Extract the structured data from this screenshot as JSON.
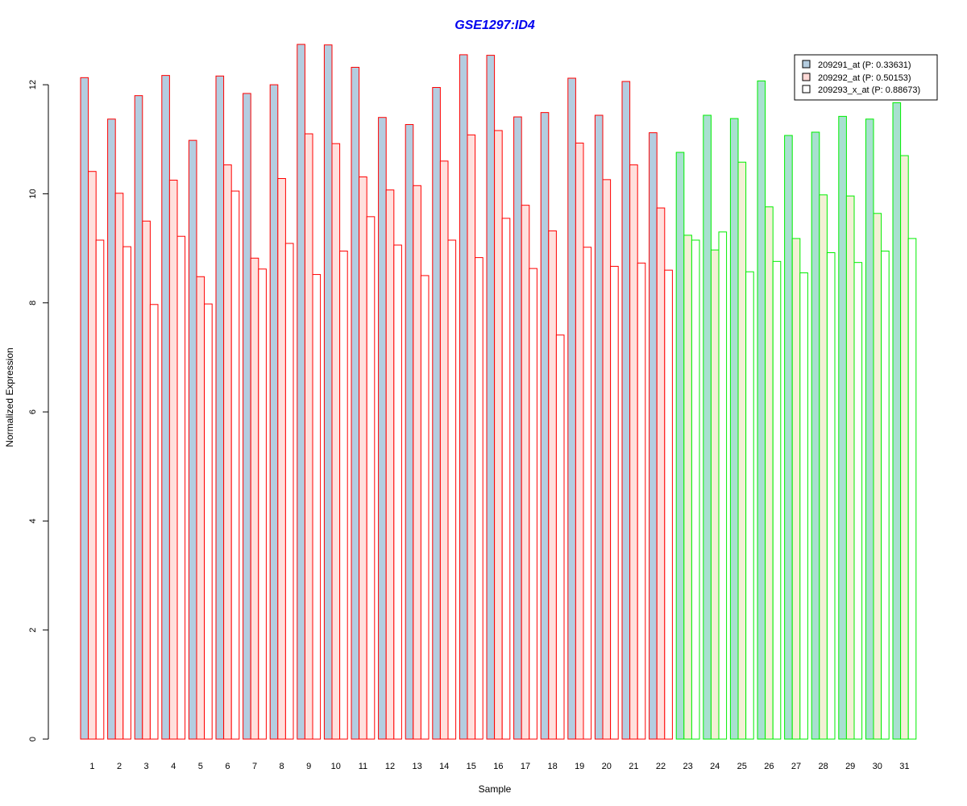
{
  "chart_data": {
    "type": "bar",
    "title": "GSE1297:ID4",
    "xlabel": "Sample",
    "ylabel": "Normalized Expression",
    "ylim": [
      0,
      12.8
    ],
    "yticks": [
      "0",
      "2",
      "4",
      "6",
      "8",
      "10",
      "12"
    ],
    "grid": false,
    "legend_position": "top-right",
    "categories": [
      "1",
      "2",
      "3",
      "4",
      "5",
      "6",
      "7",
      "8",
      "9",
      "10",
      "11",
      "12",
      "13",
      "14",
      "15",
      "16",
      "17",
      "18",
      "19",
      "20",
      "21",
      "22",
      "23",
      "24",
      "25",
      "26",
      "27",
      "28",
      "29",
      "30",
      "31"
    ],
    "group_a_count": 22,
    "group_colors": {
      "group_a_border": "#ff0000",
      "group_b_border": "#00ee00"
    },
    "series": [
      {
        "name": "209291_at (P: 0.33631)",
        "fill": "#b4cde0",
        "fill_group_b": "#a8e0d0",
        "values": [
          12.13,
          11.37,
          11.8,
          12.17,
          10.98,
          12.16,
          11.84,
          12.0,
          12.74,
          12.73,
          12.32,
          11.4,
          11.27,
          11.95,
          12.55,
          12.54,
          11.41,
          11.49,
          12.12,
          11.44,
          12.06,
          11.12,
          10.76,
          11.44,
          11.38,
          12.07,
          11.07,
          11.13,
          11.42,
          11.37,
          11.67
        ]
      },
      {
        "name": "209292_at (P: 0.50153)",
        "fill": "#ffe0dd",
        "fill_group_b": "#f3f0d5",
        "values": [
          10.41,
          10.01,
          9.5,
          10.25,
          8.48,
          10.53,
          8.82,
          10.28,
          11.1,
          10.92,
          10.31,
          10.07,
          10.15,
          10.6,
          11.08,
          11.16,
          9.79,
          9.32,
          10.93,
          10.26,
          10.53,
          9.74,
          9.24,
          8.97,
          10.58,
          9.76,
          9.18,
          9.98,
          9.96,
          9.64,
          10.7
        ]
      },
      {
        "name": "209293_x_at (P: 0.88673)",
        "fill": "#ffffff",
        "fill_group_b": "#ffffff",
        "values": [
          9.15,
          9.03,
          7.97,
          9.22,
          7.98,
          10.05,
          8.62,
          9.09,
          8.52,
          8.95,
          9.58,
          9.06,
          8.5,
          9.15,
          8.83,
          9.55,
          8.63,
          7.41,
          9.02,
          8.67,
          8.73,
          8.6,
          9.15,
          9.3,
          8.57,
          8.76,
          8.55,
          8.92,
          8.74,
          8.95,
          9.18
        ]
      }
    ]
  }
}
